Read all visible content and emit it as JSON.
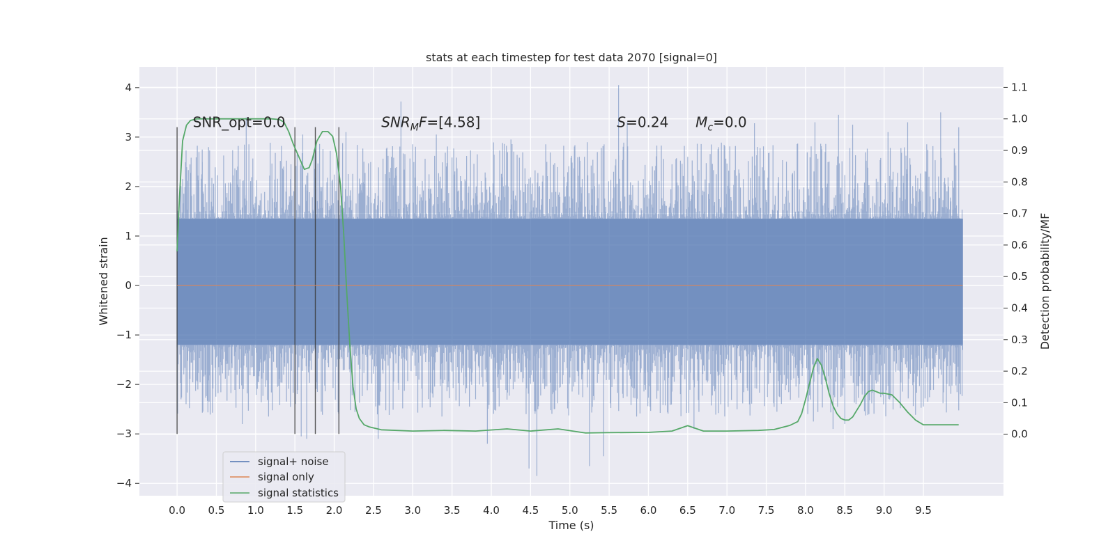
{
  "chart_data": {
    "type": "line",
    "title": "stats at each timestep for test data 2070 [signal=0]",
    "xlabel": "Time (s)",
    "ylabel": "Whitened strain",
    "y2label": "Detection probability/MF",
    "xlim": [
      -0.48,
      10.52
    ],
    "ylim": [
      -4.25,
      4.42
    ],
    "y2lim": [
      -0.195,
      1.165
    ],
    "xticks": [
      "0.0",
      "0.5",
      "1.0",
      "1.5",
      "2.0",
      "2.5",
      "3.0",
      "3.5",
      "4.0",
      "4.5",
      "5.0",
      "5.5",
      "6.0",
      "6.5",
      "7.0",
      "7.5",
      "8.0",
      "8.5",
      "9.0",
      "9.5"
    ],
    "yticks": [
      "−4",
      "−3",
      "−2",
      "−1",
      "0",
      "1",
      "2",
      "3",
      "4"
    ],
    "y2ticks": [
      "0.0",
      "0.1",
      "0.2",
      "0.3",
      "0.4",
      "0.5",
      "0.6",
      "0.7",
      "0.8",
      "0.9",
      "1.0",
      "1.1"
    ],
    "grid": true,
    "legend_position": "lower-left",
    "annotations": [
      {
        "text": "SNR_opt=0.0",
        "x": 0.2,
        "y": 3.2
      },
      {
        "text": "SNR_MF=[4.58]",
        "x": 2.6,
        "y": 3.2
      },
      {
        "text": "S=0.24",
        "x": 5.6,
        "y": 3.2
      },
      {
        "text": "M_c=0.0",
        "x": 6.6,
        "y": 3.2
      }
    ],
    "vertical_lines": [
      0.0,
      1.5,
      1.76,
      2.06
    ],
    "vertical_line_range": [
      -3.0,
      3.2
    ],
    "series": [
      {
        "name": "signal+ noise",
        "color": "#4c72b0",
        "axis": "left",
        "noise_envelope": {
          "x_range": [
            0.0,
            10.0
          ],
          "core": [
            -1.2,
            1.35
          ],
          "upper_spikes": [
            [
              0.32,
              2.75
            ],
            [
              0.88,
              3.4
            ],
            [
              1.45,
              2.45
            ],
            [
              1.6,
              3.05
            ],
            [
              2.15,
              3.1
            ],
            [
              2.85,
              3.72
            ],
            [
              3.3,
              3.05
            ],
            [
              4.25,
              2.95
            ],
            [
              5.62,
              4.05
            ],
            [
              5.73,
              3.3
            ],
            [
              6.5,
              2.6
            ],
            [
              6.8,
              2.85
            ],
            [
              7.35,
              3.28
            ],
            [
              8.12,
              3.3
            ],
            [
              8.25,
              2.7
            ],
            [
              8.42,
              3.45
            ],
            [
              8.6,
              3.25
            ],
            [
              9.05,
              3.1
            ],
            [
              9.3,
              3.3
            ],
            [
              9.72,
              3.5
            ],
            [
              9.95,
              3.2
            ]
          ],
          "lower_spikes": [
            [
              0.05,
              -2.3
            ],
            [
              0.83,
              -2.8
            ],
            [
              1.58,
              -3.05
            ],
            [
              1.65,
              -3.1
            ],
            [
              2.56,
              -3.1
            ],
            [
              3.95,
              -3.2
            ],
            [
              4.48,
              -3.7
            ],
            [
              4.58,
              -3.85
            ],
            [
              5.25,
              -3.65
            ],
            [
              5.43,
              -3.45
            ],
            [
              6.58,
              -2.9
            ],
            [
              8.1,
              -2.75
            ],
            [
              8.35,
              -2.9
            ],
            [
              8.5,
              -2.8
            ]
          ]
        }
      },
      {
        "name": "signal only",
        "color": "#dd8452",
        "axis": "left",
        "x": [
          0.0,
          10.0
        ],
        "y": [
          0.0,
          0.0
        ]
      },
      {
        "name": "signal statistics",
        "color": "#55a868",
        "axis": "right",
        "x": [
          0.0,
          0.03,
          0.07,
          0.12,
          0.17,
          0.25,
          0.4,
          0.6,
          0.8,
          1.0,
          1.2,
          1.3,
          1.36,
          1.42,
          1.48,
          1.55,
          1.62,
          1.68,
          1.72,
          1.78,
          1.85,
          1.92,
          1.98,
          2.03,
          2.08,
          2.12,
          2.16,
          2.2,
          2.24,
          2.28,
          2.32,
          2.38,
          2.45,
          2.6,
          3.0,
          3.4,
          3.8,
          4.2,
          4.5,
          4.85,
          5.2,
          5.5,
          6.0,
          6.3,
          6.5,
          6.7,
          7.0,
          7.4,
          7.6,
          7.8,
          7.9,
          7.95,
          8.0,
          8.05,
          8.1,
          8.15,
          8.2,
          8.25,
          8.3,
          8.35,
          8.4,
          8.45,
          8.5,
          8.55,
          8.6,
          8.65,
          8.7,
          8.75,
          8.8,
          8.85,
          8.9,
          8.95,
          9.0,
          9.1,
          9.2,
          9.3,
          9.4,
          9.5,
          9.6,
          9.7,
          9.8,
          9.9,
          9.95
        ],
        "y": [
          0.58,
          0.75,
          0.93,
          0.98,
          0.995,
          1.0,
          1.0,
          1.0,
          1.0,
          1.0,
          1.0,
          0.998,
          0.99,
          0.96,
          0.92,
          0.88,
          0.84,
          0.845,
          0.87,
          0.93,
          0.96,
          0.96,
          0.945,
          0.89,
          0.79,
          0.64,
          0.45,
          0.28,
          0.15,
          0.08,
          0.05,
          0.03,
          0.023,
          0.014,
          0.01,
          0.012,
          0.01,
          0.017,
          0.01,
          0.017,
          0.004,
          0.005,
          0.006,
          0.01,
          0.027,
          0.01,
          0.01,
          0.012,
          0.015,
          0.028,
          0.04,
          0.065,
          0.11,
          0.16,
          0.21,
          0.24,
          0.22,
          0.18,
          0.13,
          0.09,
          0.065,
          0.05,
          0.045,
          0.045,
          0.055,
          0.075,
          0.095,
          0.12,
          0.135,
          0.14,
          0.135,
          0.13,
          0.13,
          0.125,
          0.1,
          0.07,
          0.045,
          0.03,
          0.03,
          0.03,
          0.03,
          0.03,
          0.03
        ]
      }
    ]
  }
}
